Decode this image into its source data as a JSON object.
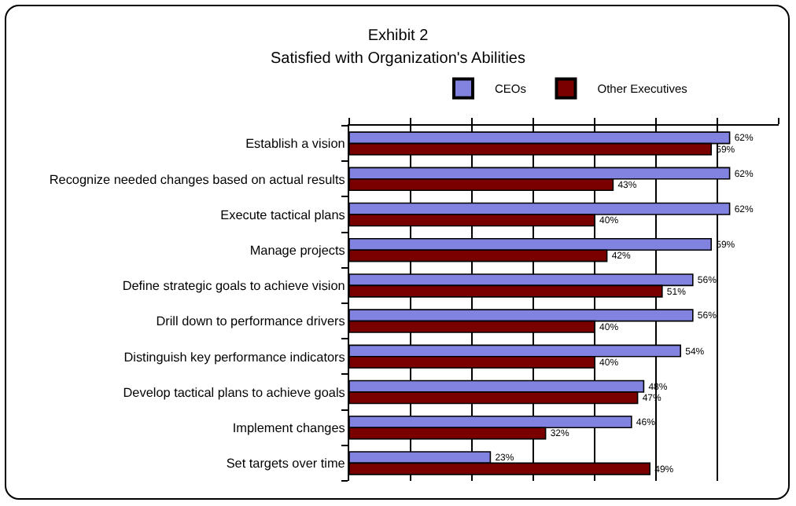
{
  "chart_data": {
    "type": "bar",
    "orientation": "horizontal",
    "title": "Exhibit 2",
    "subtitle": "Satisfied with Organization's Abilities",
    "categories": [
      "Establish a vision",
      "Recognize needed changes based on actual results",
      "Execute tactical plans",
      "Manage projects",
      "Define strategic goals to achieve vision",
      "Drill down to performance drivers",
      "Distinguish key performance indicators",
      "Develop tactical plans to achieve goals",
      "Implement changes",
      "Set targets over time"
    ],
    "series": [
      {
        "name": "CEOs",
        "color": "#8282e0",
        "values": [
          62,
          62,
          62,
          59,
          56,
          56,
          54,
          48,
          46,
          23
        ],
        "value_labels": [
          "62%",
          "62%",
          "62%",
          "59%",
          "56%",
          "56%",
          "54%",
          "48%",
          "46%",
          "23%"
        ]
      },
      {
        "name": "Other Executives",
        "color": "#7a0000",
        "values": [
          59,
          43,
          40,
          42,
          51,
          40,
          40,
          47,
          32,
          49
        ],
        "value_labels": [
          "59%",
          "43%",
          "40%",
          "42%",
          "51%",
          "40%",
          "40%",
          "47%",
          "32%",
          "49%"
        ]
      }
    ],
    "xlim": [
      0,
      70
    ],
    "xticks": [
      {
        "value": 0,
        "label": null
      },
      {
        "value": 10,
        "label": null
      },
      {
        "value": 20,
        "label": null
      },
      {
        "value": 30,
        "label": null
      },
      {
        "value": 40,
        "label": null
      },
      {
        "value": 50,
        "label": null
      },
      {
        "value": 60,
        "label": null
      },
      {
        "value": 70,
        "label": null
      }
    ],
    "tick_labels": "y",
    "grid": "x",
    "legend": "top"
  }
}
